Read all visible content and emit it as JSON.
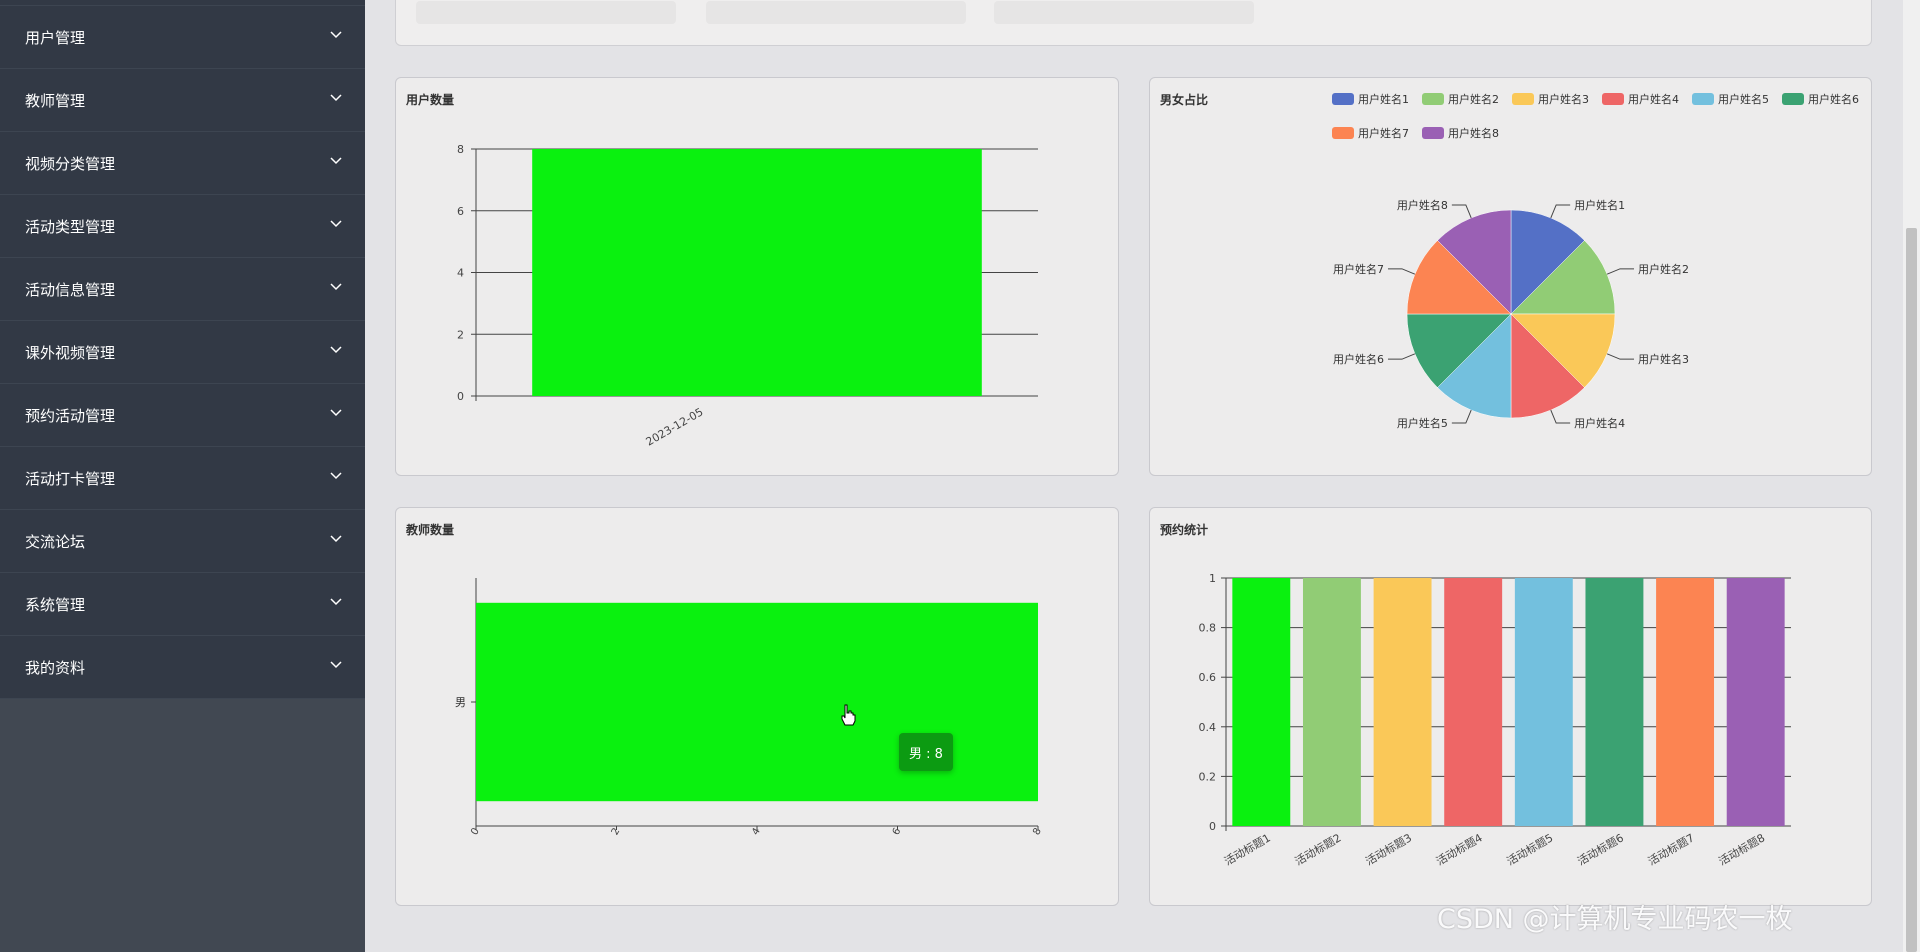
{
  "sidebar": {
    "items": [
      {
        "label": "用户管理"
      },
      {
        "label": "教师管理"
      },
      {
        "label": "视频分类管理"
      },
      {
        "label": "活动类型管理"
      },
      {
        "label": "活动信息管理"
      },
      {
        "label": "课外视频管理"
      },
      {
        "label": "预约活动管理"
      },
      {
        "label": "活动打卡管理"
      },
      {
        "label": "交流论坛"
      },
      {
        "label": "系统管理"
      },
      {
        "label": "我的资料"
      }
    ]
  },
  "colors": {
    "bar_green": "#0af10f",
    "palette": [
      "#5470c6",
      "#91cc75",
      "#fac858",
      "#ee6666",
      "#73c0de",
      "#3ba272",
      "#fc8452",
      "#9a60b4"
    ]
  },
  "panels": {
    "user_count": {
      "title": "用户数量"
    },
    "gender_ratio": {
      "title": "男女占比"
    },
    "teacher_count": {
      "title": "教师数量"
    },
    "reservation_stats": {
      "title": "预约统计"
    }
  },
  "tooltip": {
    "text": "男 : 8"
  },
  "watermark": "CSDN @计算机专业码农一枚",
  "chart_data": [
    {
      "type": "bar",
      "title": "用户数量",
      "categories": [
        "2023-12-05"
      ],
      "values": [
        8
      ],
      "yticks": [
        "0",
        "2",
        "4",
        "6",
        "8"
      ],
      "ylim": [
        0,
        8
      ]
    },
    {
      "type": "pie",
      "title": "男女占比",
      "labels": [
        "用户姓名1",
        "用户姓名2",
        "用户姓名3",
        "用户姓名4",
        "用户姓名5",
        "用户姓名6",
        "用户姓名7",
        "用户姓名8"
      ],
      "values": [
        1,
        1,
        1,
        1,
        1,
        1,
        1,
        1
      ],
      "legend": "top-right"
    },
    {
      "type": "bar",
      "orientation": "horizontal",
      "title": "教师数量",
      "categories": [
        "男"
      ],
      "values": [
        8
      ],
      "xticks": [
        "0",
        "2",
        "4",
        "6",
        "8"
      ],
      "xlim": [
        0,
        8
      ]
    },
    {
      "type": "bar",
      "title": "预约统计",
      "categories": [
        "活动标题1",
        "活动标题2",
        "活动标题3",
        "活动标题4",
        "活动标题5",
        "活动标题6",
        "活动标题7",
        "活动标题8"
      ],
      "values": [
        1,
        1,
        1,
        1,
        1,
        1,
        1,
        1
      ],
      "yticks": [
        "0",
        "0.2",
        "0.4",
        "0.6",
        "0.8",
        "1"
      ],
      "ylim": [
        0,
        1
      ]
    }
  ]
}
